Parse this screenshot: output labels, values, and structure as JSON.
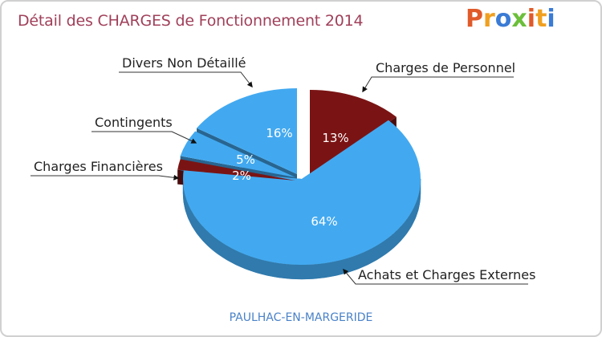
{
  "header": {
    "title": "Détail des CHARGES de Fonctionnement 2014"
  },
  "logo": {
    "letters": [
      "P",
      "r",
      "o",
      "x",
      "i",
      "t",
      "i"
    ],
    "colors": [
      "#e05a2a",
      "#f0a020",
      "#3a7bd5",
      "#6bbf3a",
      "#e05a2a",
      "#f0a020",
      "#3a7bd5"
    ]
  },
  "footer": {
    "city": "PAULHAC-EN-MARGERIDE"
  },
  "chart_data": {
    "type": "pie",
    "title": "Détail des CHARGES de Fonctionnement 2014",
    "subtitle": "PAULHAC-EN-MARGERIDE",
    "unit": "%",
    "slices": [
      {
        "label": "Charges de Personnel",
        "value": 13,
        "pct_label": "13%",
        "color": "#7a1414"
      },
      {
        "label": "Achats et Charges Externes",
        "value": 64,
        "pct_label": "64%",
        "color": "#42a9f0"
      },
      {
        "label": "Charges Financières",
        "value": 2,
        "pct_label": "2%",
        "color": "#7a1414"
      },
      {
        "label": "Contingents",
        "value": 5,
        "pct_label": "5%",
        "color": "#42a9f0"
      },
      {
        "label": "Divers Non Détaillé",
        "value": 16,
        "pct_label": "16%",
        "color": "#42a9f0"
      }
    ]
  }
}
